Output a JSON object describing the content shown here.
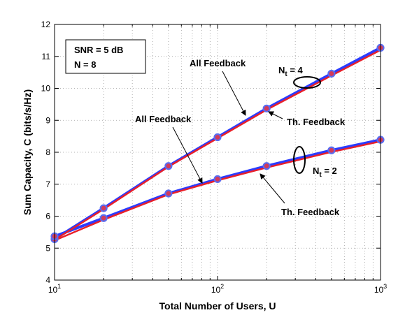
{
  "chart_data": {
    "type": "line",
    "xlabel": "Total Number of Users, U",
    "ylabel": "Sum Capacity, C (bits/s/Hz)",
    "xscale": "log",
    "xlim": [
      10,
      1000
    ],
    "ylim": [
      4,
      12
    ],
    "grid": true,
    "x_ticks": [
      {
        "value": 10,
        "base": "10",
        "exp": "1"
      },
      {
        "value": 100,
        "base": "10",
        "exp": "2"
      },
      {
        "value": 1000,
        "base": "10",
        "exp": "3"
      }
    ],
    "y_ticks": [
      4,
      5,
      6,
      7,
      8,
      9,
      10,
      11,
      12
    ],
    "x": [
      10,
      20,
      50,
      100,
      200,
      500,
      1000
    ],
    "series": [
      {
        "group": "Nt=4",
        "kind": "all",
        "color": "#2b3cff",
        "values": [
          5.28,
          6.25,
          7.57,
          8.47,
          9.37,
          10.46,
          11.27
        ]
      },
      {
        "group": "Nt=4",
        "kind": "th",
        "color": "#e8202a",
        "values": [
          5.26,
          6.22,
          7.55,
          8.44,
          9.33,
          10.4,
          11.2
        ]
      },
      {
        "group": "Nt=2",
        "kind": "all",
        "color": "#2b3cff",
        "values": [
          5.37,
          5.94,
          6.71,
          7.16,
          7.57,
          8.06,
          8.39
        ]
      },
      {
        "group": "Nt=2",
        "kind": "th",
        "color": "#e8202a",
        "values": [
          5.24,
          5.89,
          6.68,
          7.12,
          7.52,
          8.01,
          8.34
        ]
      }
    ],
    "marker_color": "#5a6cf0",
    "info_box": [
      "SNR = 5 dB",
      "N = 8"
    ],
    "annotations": {
      "all_feedback_1": "All Feedback",
      "all_feedback_2": "All Feedback",
      "th_feedback_1": "Th. Feedback",
      "th_feedback_2": "Th. Feedback",
      "nt4_base": "N",
      "nt4_sub": "t",
      "nt4_rest": " = 4",
      "nt2_base": "N",
      "nt2_sub": "t",
      "nt2_rest": " = 2"
    }
  }
}
